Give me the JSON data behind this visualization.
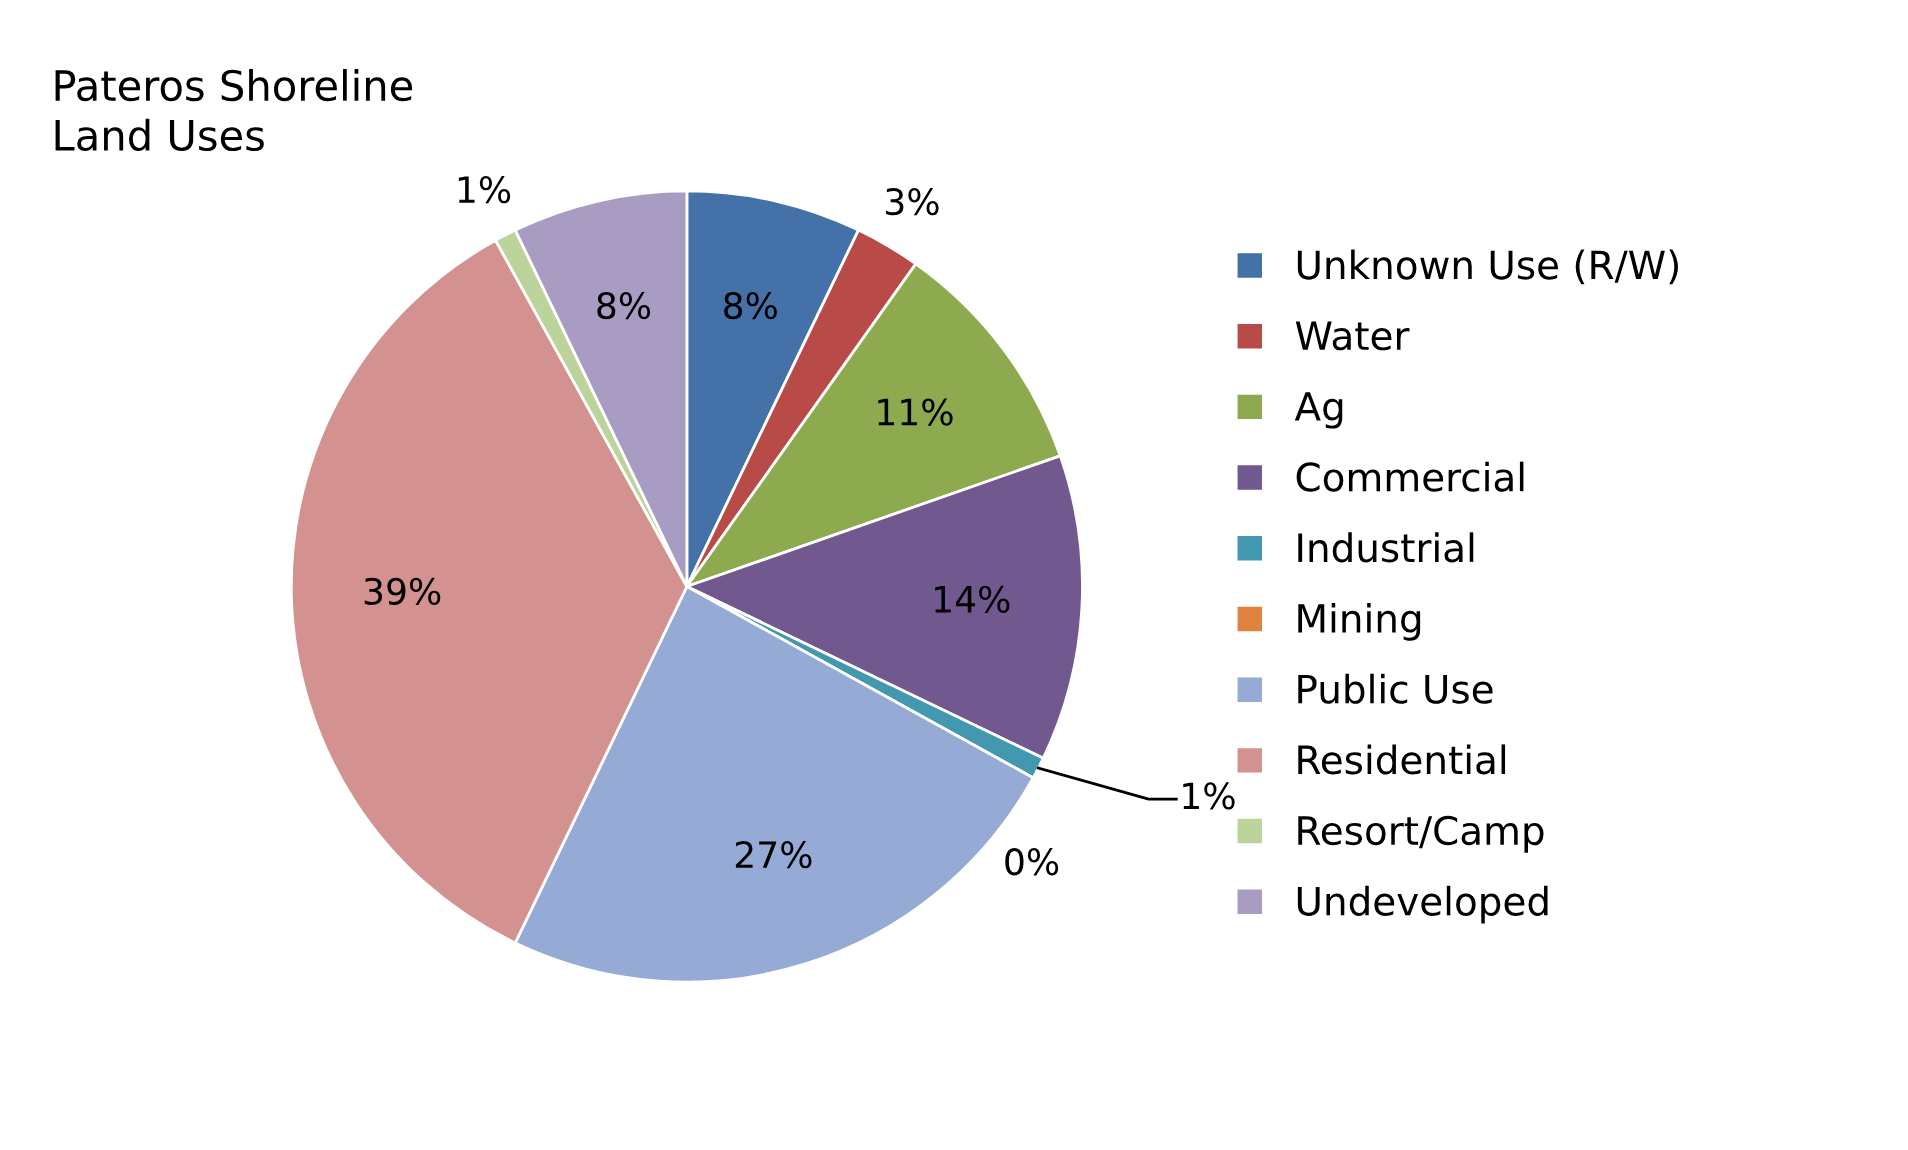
{
  "chart_data": {
    "type": "pie",
    "title": "Pateros Shoreline\nLand Uses",
    "categories": [
      "Unknown Use (R/W)",
      "Water",
      "Ag",
      "Commercial",
      "Industrial",
      "Mining",
      "Public Use",
      "Residential",
      "Resort/Camp",
      "Undeveloped"
    ],
    "values": [
      8,
      3,
      11,
      14,
      1,
      0,
      27,
      39,
      1,
      8
    ],
    "colors": [
      "#4472a8",
      "#b84a47",
      "#8eaa4f",
      "#71588f",
      "#4198af",
      "#e0833e",
      "#95abd5",
      "#d3928f",
      "#bcd39b",
      "#a99cc3"
    ],
    "value_labels": [
      "8%",
      "3%",
      "11%",
      "14%",
      "1%",
      "0%",
      "27%",
      "39%",
      "1%",
      "8%"
    ],
    "legend": "right"
  }
}
